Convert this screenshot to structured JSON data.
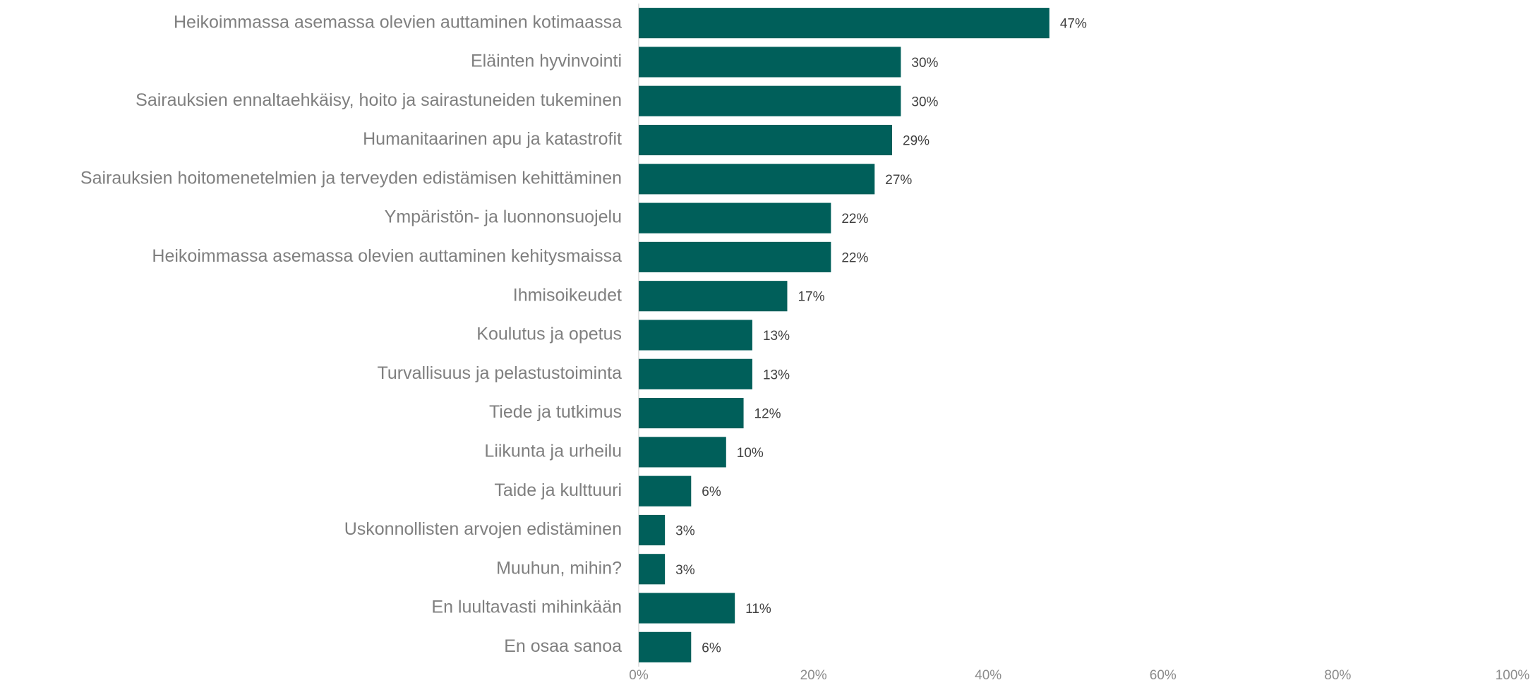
{
  "chart_data": {
    "type": "barh",
    "categories": [
      "Heikoimmassa asemassa olevien auttaminen kotimaassa",
      "Eläinten hyvinvointi",
      "Sairauksien ennaltaehkäisy, hoito ja sairastuneiden tukeminen",
      "Humanitaarinen apu ja katastrofit",
      "Sairauksien hoitomenetelmien ja terveyden edistämisen kehittäminen",
      "Ympäristön- ja luonnonsuojelu",
      "Heikoimmassa asemassa olevien auttaminen kehitysmaissa",
      "Ihmisoikeudet",
      "Koulutus ja opetus",
      "Turvallisuus ja pelastustoiminta",
      "Tiede ja tutkimus",
      "Liikunta ja urheilu",
      "Taide ja kulttuuri",
      "Uskonnollisten arvojen edistäminen",
      "Muuhun, mihin?",
      "En luultavasti mihinkään",
      "En osaa sanoa"
    ],
    "values": [
      47,
      30,
      30,
      29,
      27,
      22,
      22,
      17,
      13,
      13,
      12,
      10,
      6,
      3,
      3,
      11,
      6
    ],
    "value_labels": [
      "47%",
      "30%",
      "30%",
      "29%",
      "27%",
      "22%",
      "22%",
      "17%",
      "13%",
      "13%",
      "12%",
      "10%",
      "6%",
      "3%",
      "3%",
      "11%",
      "6%"
    ],
    "color": "#005f5a",
    "xlim": [
      0,
      100
    ],
    "xticks": [
      {
        "value": 0,
        "label": "0%"
      },
      {
        "value": 20,
        "label": "20%"
      },
      {
        "value": 40,
        "label": "40%"
      },
      {
        "value": 60,
        "label": "60%"
      },
      {
        "value": 80,
        "label": "80%"
      },
      {
        "value": 100,
        "label": "100%"
      }
    ]
  }
}
